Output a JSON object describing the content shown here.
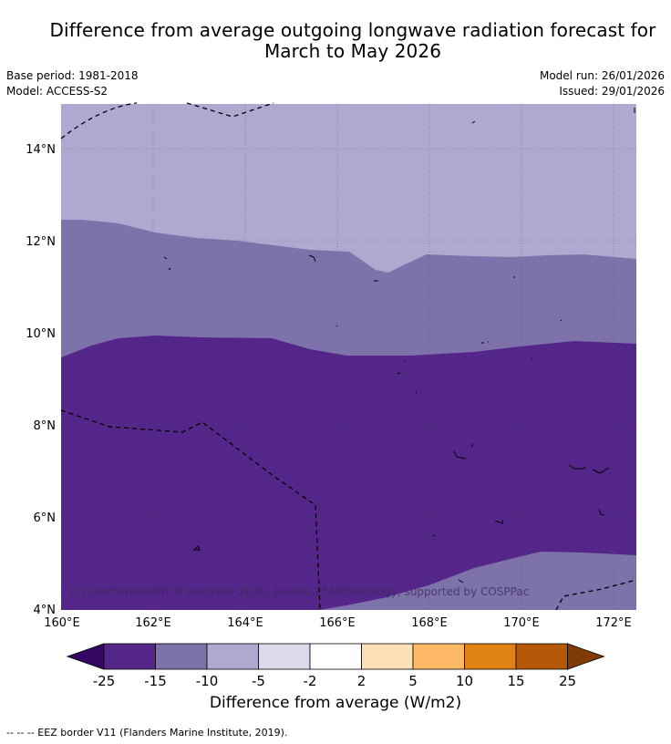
{
  "title": {
    "line1": "Difference from average outgoing longwave radiation forecast for",
    "line2": "March to May 2026"
  },
  "meta": {
    "base_period": "Base period: 1981-2018",
    "model": "Model: ACCESS-S2",
    "model_run": "Model run: 26/01/2026",
    "issued": "Issued: 29/01/2026"
  },
  "map": {
    "lat_labels": [
      "14°N",
      "12°N",
      "10°N",
      "8°N",
      "6°N",
      "4°N"
    ],
    "lon_labels": [
      "160°E",
      "162°E",
      "164°E",
      "166°E",
      "168°E",
      "170°E",
      "172°E"
    ],
    "copyright": "© Commonwealth of Australia 2026, Bureau of Meteorology, supported by COSPPac",
    "region_colors": {
      "above_-5": "#afa8d0",
      "-10_to_-5": "#7e72ab",
      "-15_to_-10": "#55268a"
    }
  },
  "colorbar": {
    "ticks": [
      "-25",
      "-15",
      "-10",
      "-5",
      "-2",
      "2",
      "5",
      "10",
      "15",
      "25"
    ],
    "colors": [
      "#350762",
      "#55268a",
      "#7e72ab",
      "#afa8d0",
      "#dbdaed",
      "#ffffff",
      "#fee0b6",
      "#fdb865",
      "#e08215",
      "#b35807",
      "#7f3b08"
    ],
    "label": "Difference from average (W/m2)"
  },
  "legend": {
    "eez_note": "--  --  -- EEZ border V11 (Flanders Marine Institute, 2019)."
  }
}
